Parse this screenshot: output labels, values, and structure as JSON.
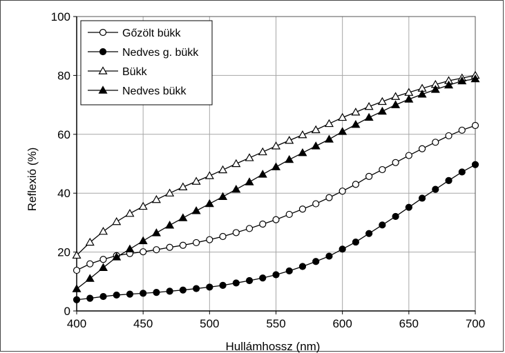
{
  "chart_data": {
    "type": "line",
    "title": "",
    "xlabel": "Hullámhossz (nm)",
    "ylabel": "Reflexió (%)",
    "xlim": [
      400,
      700
    ],
    "ylim": [
      0,
      100
    ],
    "x_ticks": [
      400,
      450,
      500,
      550,
      600,
      650,
      700
    ],
    "y_ticks": [
      0,
      20,
      40,
      60,
      80,
      100
    ],
    "grid": true,
    "legend_position": "top-left",
    "x": [
      400,
      410,
      420,
      430,
      440,
      450,
      460,
      470,
      480,
      490,
      500,
      510,
      520,
      530,
      540,
      550,
      560,
      570,
      580,
      590,
      600,
      610,
      620,
      630,
      640,
      650,
      660,
      670,
      680,
      690,
      700
    ],
    "series": [
      {
        "name": "Gőzölt bükk",
        "marker": "circle-open",
        "values": [
          13.8,
          16.0,
          17.5,
          18.8,
          19.5,
          20.1,
          20.8,
          21.6,
          22.3,
          23.2,
          24.2,
          25.3,
          26.6,
          28.0,
          29.5,
          31.0,
          32.8,
          34.6,
          36.4,
          38.5,
          40.7,
          43.0,
          45.7,
          48.0,
          50.4,
          52.8,
          55.1,
          57.3,
          59.5,
          61.4,
          63.0
        ]
      },
      {
        "name": "Nedves g. bükk",
        "marker": "circle-filled",
        "values": [
          3.8,
          4.3,
          4.9,
          5.4,
          5.7,
          6.0,
          6.3,
          6.7,
          7.1,
          7.6,
          8.1,
          8.7,
          9.5,
          10.3,
          11.2,
          12.3,
          13.6,
          15.1,
          16.8,
          18.6,
          21.0,
          23.4,
          26.3,
          29.2,
          32.1,
          35.2,
          38.3,
          41.3,
          44.3,
          47.2,
          49.7
        ]
      },
      {
        "name": "Bükk",
        "marker": "triangle-open",
        "values": [
          18.9,
          23.3,
          27.0,
          30.3,
          33.1,
          35.5,
          37.8,
          40.0,
          42.1,
          44.0,
          45.9,
          47.9,
          50.0,
          52.0,
          54.0,
          56.0,
          57.9,
          59.8,
          61.5,
          63.6,
          65.7,
          67.5,
          69.4,
          71.1,
          72.8,
          74.2,
          75.6,
          76.9,
          78.2,
          79.1,
          80.0
        ]
      },
      {
        "name": "Nedves bükk",
        "marker": "triangle-filled",
        "values": [
          7.5,
          11.0,
          14.7,
          18.3,
          21.0,
          23.8,
          26.5,
          29.1,
          31.6,
          34.0,
          36.4,
          38.8,
          41.3,
          43.8,
          46.4,
          48.9,
          51.4,
          53.7,
          56.0,
          58.3,
          60.9,
          63.3,
          65.7,
          67.8,
          70.0,
          71.9,
          73.6,
          75.2,
          76.7,
          78.1,
          78.8
        ]
      }
    ]
  }
}
